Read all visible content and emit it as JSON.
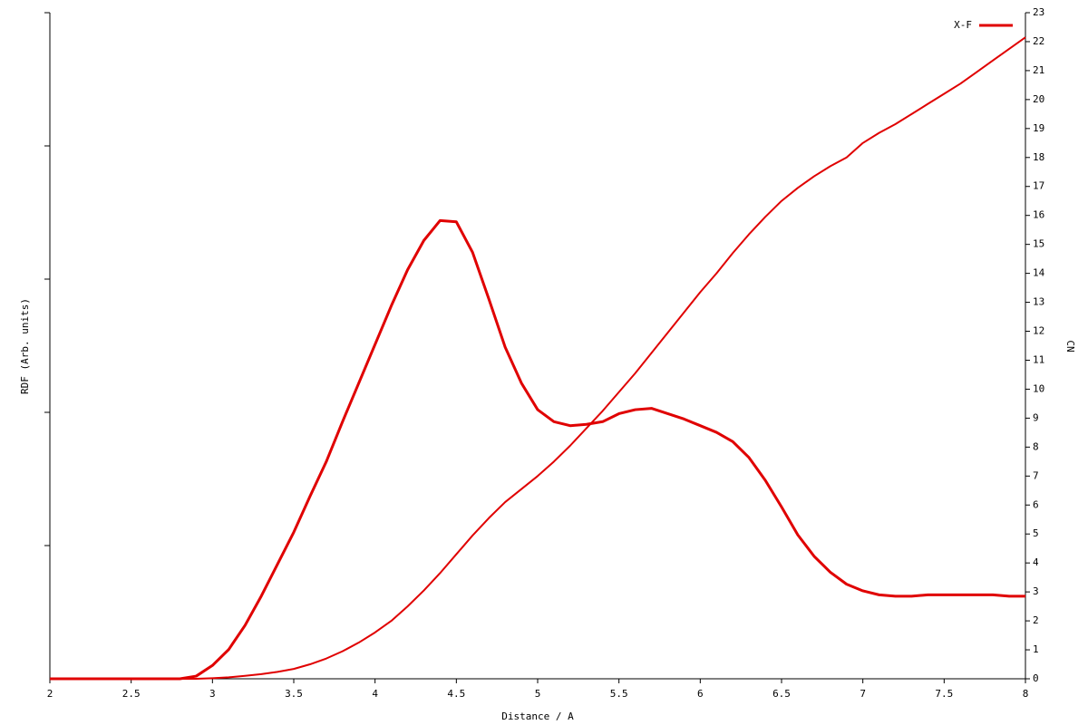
{
  "chart_data": {
    "type": "line",
    "xlabel": "Distance / A",
    "ylabel": "RDF (Arb. units)",
    "y2label": "CN",
    "x": [
      2.0,
      2.1,
      2.2,
      2.3,
      2.4,
      2.5,
      2.6,
      2.7,
      2.8,
      2.9,
      3.0,
      3.1,
      3.2,
      3.3,
      3.4,
      3.5,
      3.6,
      3.7,
      3.8,
      3.9,
      4.0,
      4.1,
      4.2,
      4.3,
      4.4,
      4.5,
      4.6,
      4.7,
      4.8,
      4.9,
      5.0,
      5.1,
      5.2,
      5.3,
      5.4,
      5.5,
      5.6,
      5.7,
      5.8,
      5.9,
      6.0,
      6.1,
      6.2,
      6.3,
      6.4,
      6.5,
      6.6,
      6.7,
      6.8,
      6.9,
      7.0,
      7.1,
      7.2,
      7.3,
      7.4,
      7.5,
      7.6,
      7.7,
      7.8,
      7.9,
      8.0
    ],
    "series": [
      {
        "name": "X-F",
        "color": "#e00000",
        "values": [
          0,
          0,
          0,
          0,
          0,
          0,
          0,
          0,
          0,
          0.02,
          0.1,
          0.22,
          0.4,
          0.62,
          0.86,
          1.1,
          1.37,
          1.63,
          1.93,
          2.22,
          2.51,
          2.8,
          3.07,
          3.29,
          3.44,
          3.43,
          3.2,
          2.85,
          2.49,
          2.22,
          2.02,
          1.93,
          1.9,
          1.91,
          1.93,
          1.99,
          2.02,
          2.03,
          1.99,
          1.95,
          1.9,
          1.85,
          1.78,
          1.66,
          1.49,
          1.29,
          1.08,
          0.92,
          0.8,
          0.71,
          0.66,
          0.63,
          0.62,
          0.62,
          0.63,
          0.63,
          0.63,
          0.63,
          0.63,
          0.62,
          0.62
        ]
      },
      {
        "color": "#e00000",
        "axis": "y2",
        "values": [
          0,
          0,
          0,
          0,
          0,
          0,
          0,
          0,
          0,
          0,
          0.02,
          0.05,
          0.1,
          0.16,
          0.24,
          0.34,
          0.5,
          0.7,
          0.95,
          1.25,
          1.6,
          2.0,
          2.5,
          3.05,
          3.65,
          4.3,
          4.95,
          5.55,
          6.1,
          6.55,
          7.0,
          7.5,
          8.05,
          8.65,
          9.25,
          9.9,
          10.55,
          11.25,
          11.95,
          12.65,
          13.35,
          14.0,
          14.7,
          15.35,
          15.95,
          16.5,
          16.95,
          17.35,
          17.7,
          18.0,
          18.5,
          18.85,
          19.15,
          19.5,
          19.85,
          20.2,
          20.55,
          20.95,
          21.35,
          21.75,
          22.15
        ]
      }
    ],
    "xlim": [
      2,
      8
    ],
    "xticks": [
      2,
      2.5,
      3,
      3.5,
      4,
      4.5,
      5,
      5.5,
      6,
      6.5,
      7,
      7.5,
      8
    ],
    "ylim": [
      0,
      5
    ],
    "y2lim": [
      0,
      23
    ],
    "y2ticks": [
      0,
      1,
      2,
      3,
      4,
      5,
      6,
      7,
      8,
      9,
      10,
      11,
      12,
      13,
      14,
      15,
      16,
      17,
      18,
      19,
      20,
      21,
      22,
      23
    ]
  }
}
